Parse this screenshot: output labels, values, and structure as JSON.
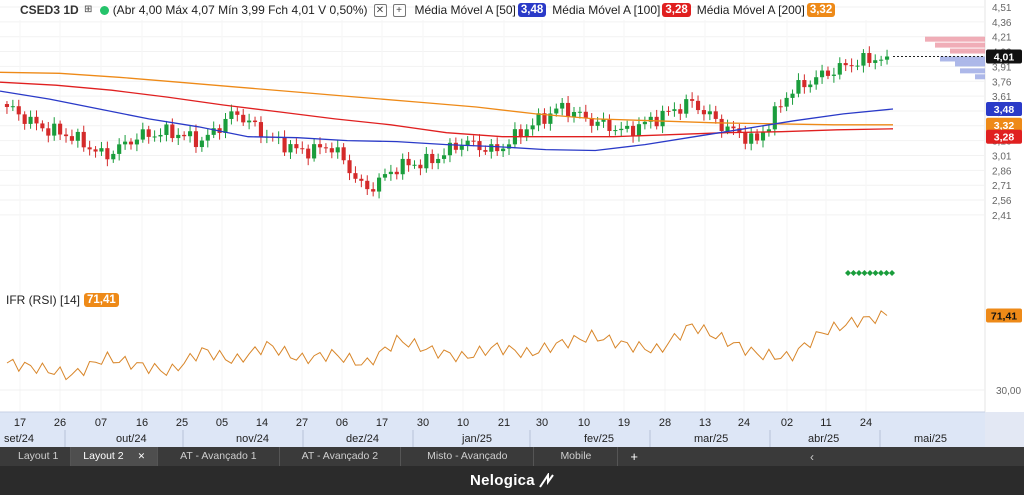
{
  "header": {
    "symbol": "CSED3 1D",
    "quote": "(Abr 4,00 Máx 4,07 Mín 3,99 Fch 4,01 V 0,50%)",
    "ma": [
      {
        "label": "Média Móvel A [50]",
        "value": "3,48",
        "color": "#2a3ac8"
      },
      {
        "label": "Média Móvel A [100]",
        "value": "3,28",
        "color": "#e02020"
      },
      {
        "label": "Média Móvel A [200]",
        "value": "3,32",
        "color": "#ee8a18"
      }
    ]
  },
  "rsi": {
    "label": "IFR (RSI) [14]",
    "value": "71,41",
    "level_label": "30,00"
  },
  "chart_data": {
    "type": "candlestick",
    "price_ticks": [
      "4,51",
      "4,36",
      "4,21",
      "4,06",
      "3,91",
      "3,76",
      "3,61",
      "3,46",
      "3,31",
      "3,16",
      "3,01",
      "2,86",
      "2,71",
      "2,56",
      "2,41"
    ],
    "price_labels": {
      "last": "4,01",
      "ma50": "3,48",
      "ma200": "3,32",
      "ma100": "3,28"
    },
    "day_labels": [
      "17",
      "26",
      "07",
      "16",
      "25",
      "05",
      "14",
      "27",
      "06",
      "17",
      "30",
      "10",
      "21",
      "30",
      "10",
      "19",
      "28",
      "13",
      "24",
      "02",
      "11",
      "24"
    ],
    "month_labels": [
      "set/24",
      "out/24",
      "nov/24",
      "dez/24",
      "jan/25",
      "fev/25",
      "mar/25",
      "abr/25",
      "mai/25"
    ],
    "key_prices": [
      3.5,
      3.3,
      3.2,
      3.0,
      3.2,
      3.25,
      3.15,
      3.45,
      3.2,
      3.05,
      3.1,
      2.65,
      2.9,
      2.95,
      3.15,
      3.05,
      3.3,
      3.5,
      3.35,
      3.25,
      3.4,
      3.55,
      3.3,
      3.15,
      3.65,
      3.82,
      3.95,
      4.01
    ],
    "ma50": [
      3.66,
      3.58,
      3.48,
      3.38,
      3.3,
      3.2,
      3.19,
      3.16,
      3.15,
      3.12,
      3.1,
      3.07,
      3.06,
      3.12,
      3.2,
      3.28,
      3.36,
      3.43,
      3.48
    ],
    "ma100": [
      3.75,
      3.72,
      3.67,
      3.6,
      3.52,
      3.45,
      3.38,
      3.32,
      3.24,
      3.2,
      3.2,
      3.2,
      3.22,
      3.24,
      3.25,
      3.27,
      3.28
    ],
    "ma200": [
      3.85,
      3.84,
      3.8,
      3.75,
      3.7,
      3.65,
      3.6,
      3.55,
      3.5,
      3.43,
      3.38,
      3.36,
      3.34,
      3.33,
      3.32,
      3.32
    ],
    "rsi_values": [
      45,
      42,
      38,
      48,
      44,
      40,
      52,
      46,
      55,
      47,
      50,
      44,
      58,
      52,
      48,
      54,
      50,
      56,
      60,
      55,
      52,
      66,
      58,
      50,
      48,
      62,
      68,
      71.41
    ]
  },
  "tabs": [
    "Layout 1",
    "Layout 2",
    "AT - Avançado 1",
    "AT - Avançado 2",
    "Misto - Avançado",
    "Mobile"
  ],
  "tab_close": "✕",
  "tab_add": "+",
  "brand": "Nelogica"
}
